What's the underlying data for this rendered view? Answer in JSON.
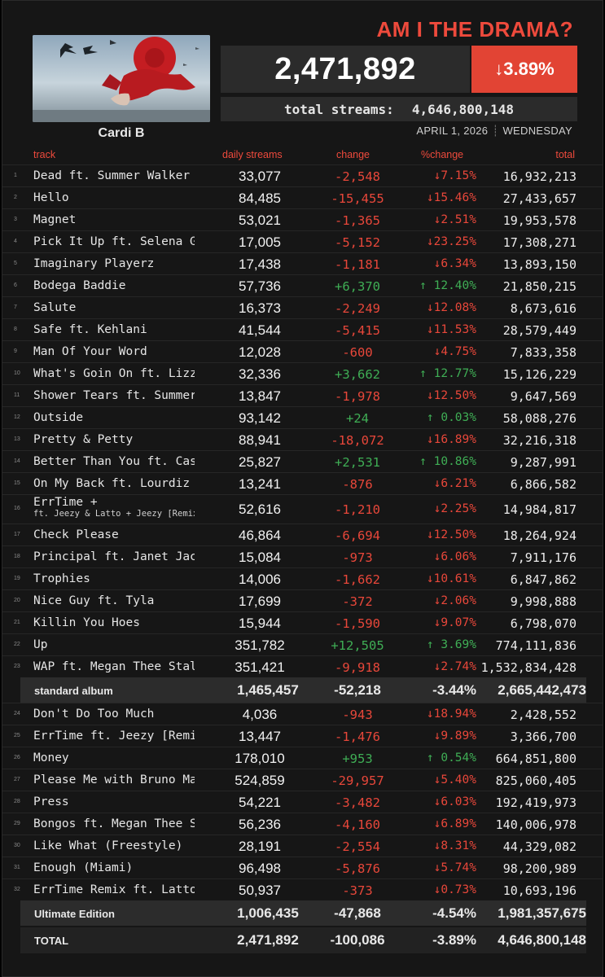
{
  "header": {
    "album_title": "AM I THE DRAMA?",
    "artist": "Cardi B",
    "daily_total": "2,471,892",
    "daily_pct": "3.89%",
    "daily_pct_arrow": "↓",
    "total_label": "total streams:",
    "total_value": "4,646,800,148",
    "date": "APRIL 1, 2026",
    "weekday": "WEDNESDAY"
  },
  "columns": {
    "track": "track",
    "daily": "daily streams",
    "change": "change",
    "pct": "%change",
    "total": "total"
  },
  "standard_tracks": [
    {
      "n": "1",
      "track": "Dead ft.  Summer Walker",
      "daily": "33,077",
      "change": "-2,548",
      "pct": "↓7.15%",
      "total": "16,932,213",
      "dir": "neg"
    },
    {
      "n": "2",
      "track": "Hello",
      "daily": "84,485",
      "change": "-15,455",
      "pct": "↓15.46%",
      "total": "27,433,657",
      "dir": "neg"
    },
    {
      "n": "3",
      "track": "Magnet",
      "daily": "53,021",
      "change": "-1,365",
      "pct": "↓2.51%",
      "total": "19,953,578",
      "dir": "neg"
    },
    {
      "n": "4",
      "track": "Pick It Up ft. Selena Gomez",
      "daily": "17,005",
      "change": "-5,152",
      "pct": "↓23.25%",
      "total": "17,308,271",
      "dir": "neg"
    },
    {
      "n": "5",
      "track": "Imaginary Playerz",
      "daily": "17,438",
      "change": "-1,181",
      "pct": "↓6.34%",
      "total": "13,893,150",
      "dir": "neg"
    },
    {
      "n": "6",
      "track": "Bodega Baddie",
      "daily": "57,736",
      "change": "+6,370",
      "pct": "↑ 12.40%",
      "total": "21,850,215",
      "dir": "pos"
    },
    {
      "n": "7",
      "track": "Salute",
      "daily": "16,373",
      "change": "-2,249",
      "pct": "↓12.08%",
      "total": "8,673,616",
      "dir": "neg"
    },
    {
      "n": "8",
      "track": "Safe ft. Kehlani",
      "daily": "41,544",
      "change": "-5,415",
      "pct": "↓11.53%",
      "total": "28,579,449",
      "dir": "neg"
    },
    {
      "n": "9",
      "track": "Man Of Your Word",
      "daily": "12,028",
      "change": "-600",
      "pct": "↓4.75%",
      "total": "7,833,358",
      "dir": "neg"
    },
    {
      "n": "10",
      "track": "What's Goin On ft. Lizzo",
      "daily": "32,336",
      "change": "+3,662",
      "pct": "↑ 12.77%",
      "total": "15,126,229",
      "dir": "pos"
    },
    {
      "n": "11",
      "track": "Shower Tears ft.  Summer Walker",
      "daily": "13,847",
      "change": "-1,978",
      "pct": "↓12.50%",
      "total": "9,647,569",
      "dir": "neg"
    },
    {
      "n": "12",
      "track": "Outside",
      "daily": "93,142",
      "change": "+24",
      "pct": "↑ 0.03%",
      "total": "58,088,276",
      "dir": "pos"
    },
    {
      "n": "13",
      "track": "Pretty & Petty",
      "daily": "88,941",
      "change": "-18,072",
      "pct": "↓16.89%",
      "total": "32,216,318",
      "dir": "neg"
    },
    {
      "n": "14",
      "track": "Better Than You ft. Cash Cobain",
      "daily": "25,827",
      "change": "+2,531",
      "pct": "↑ 10.86%",
      "total": "9,287,991",
      "dir": "pos"
    },
    {
      "n": "15",
      "track": "On My Back  ft. Lourdiz",
      "daily": "13,241",
      "change": "-876",
      "pct": "↓6.21%",
      "total": "6,866,582",
      "dir": "neg"
    },
    {
      "n": "16",
      "track": "ErrTime +",
      "sub": "ft. Jeezy & Latto + Jeezy [Remix]",
      "daily": "52,616",
      "change": "-1,210",
      "pct": "↓2.25%",
      "total": "14,984,817",
      "dir": "neg"
    },
    {
      "n": "17",
      "track": "Check Please",
      "daily": "46,864",
      "change": "-6,694",
      "pct": "↓12.50%",
      "total": "18,264,924",
      "dir": "neg"
    },
    {
      "n": "18",
      "track": "Principal  ft. Janet Jackson",
      "daily": "15,084",
      "change": "-973",
      "pct": "↓6.06%",
      "total": "7,911,176",
      "dir": "neg"
    },
    {
      "n": "19",
      "track": "Trophies",
      "daily": "14,006",
      "change": "-1,662",
      "pct": "↓10.61%",
      "total": "6,847,862",
      "dir": "neg"
    },
    {
      "n": "20",
      "track": "Nice Guy  ft. Tyla",
      "daily": "17,699",
      "change": "-372",
      "pct": "↓2.06%",
      "total": "9,998,888",
      "dir": "neg"
    },
    {
      "n": "21",
      "track": "Killin You Hoes",
      "daily": "15,944",
      "change": "-1,590",
      "pct": "↓9.07%",
      "total": "6,798,070",
      "dir": "neg"
    },
    {
      "n": "22",
      "track": "Up",
      "daily": "351,782",
      "change": "+12,505",
      "pct": "↑ 3.69%",
      "total": "774,111,836",
      "dir": "pos"
    },
    {
      "n": "23",
      "track": "WAP ft. Megan Thee Stallion",
      "daily": "351,421",
      "change": "-9,918",
      "pct": "↓2.74%",
      "total": "1,532,834,428",
      "dir": "neg"
    }
  ],
  "standard_summary": {
    "label": "standard album",
    "daily": "1,465,457",
    "change": "-52,218",
    "pct": "-3.44%",
    "total": "2,665,442,473"
  },
  "ultimate_tracks": [
    {
      "n": "24",
      "track": "Don't Do Too Much",
      "daily": "4,036",
      "change": "-943",
      "pct": "↓18.94%",
      "total": "2,428,552",
      "dir": "neg"
    },
    {
      "n": "25",
      "track": "ErrTime ft. Jeezy [Remix]",
      "daily": "13,447",
      "change": "-1,476",
      "pct": "↓9.89%",
      "total": "3,366,700",
      "dir": "neg"
    },
    {
      "n": "26",
      "track": "Money",
      "daily": "178,010",
      "change": "+953",
      "pct": "↑ 0.54%",
      "total": "664,851,800",
      "dir": "pos"
    },
    {
      "n": "27",
      "track": "Please Me with Bruno Mars",
      "daily": "524,859",
      "change": "-29,957",
      "pct": "↓5.40%",
      "total": "825,060,405",
      "dir": "neg"
    },
    {
      "n": "28",
      "track": "Press",
      "daily": "54,221",
      "change": "-3,482",
      "pct": "↓6.03%",
      "total": "192,419,973",
      "dir": "neg"
    },
    {
      "n": "29",
      "track": "Bongos ft. Megan Thee Stallion",
      "daily": "56,236",
      "change": "-4,160",
      "pct": "↓6.89%",
      "total": "140,006,978",
      "dir": "neg"
    },
    {
      "n": "30",
      "track": "Like What (Freestyle)",
      "daily": "28,191",
      "change": "-2,554",
      "pct": "↓8.31%",
      "total": "44,329,082",
      "dir": "neg"
    },
    {
      "n": "31",
      "track": "Enough (Miami)",
      "daily": "96,498",
      "change": "-5,876",
      "pct": "↓5.74%",
      "total": "98,200,989",
      "dir": "neg"
    },
    {
      "n": "32",
      "track": "ErrTime Remix ft. Latto",
      "daily": "50,937",
      "change": "-373",
      "pct": "↓0.73%",
      "total": "10,693,196",
      "dir": "neg"
    }
  ],
  "ultimate_summary": {
    "label": "Ultimate Edition",
    "daily": "1,006,435",
    "change": "-47,868",
    "pct": "-4.54%",
    "total": "1,981,357,675"
  },
  "grand_total": {
    "label": "TOTAL",
    "daily": "2,471,892",
    "change": "-100,086",
    "pct": "-3.89%",
    "total": "4,646,800,148"
  },
  "colors": {
    "accent": "#ee4a3c",
    "negative": "#e8473a",
    "positive": "#3fae55",
    "panel": "#2b2b2b",
    "background": "#161616"
  }
}
